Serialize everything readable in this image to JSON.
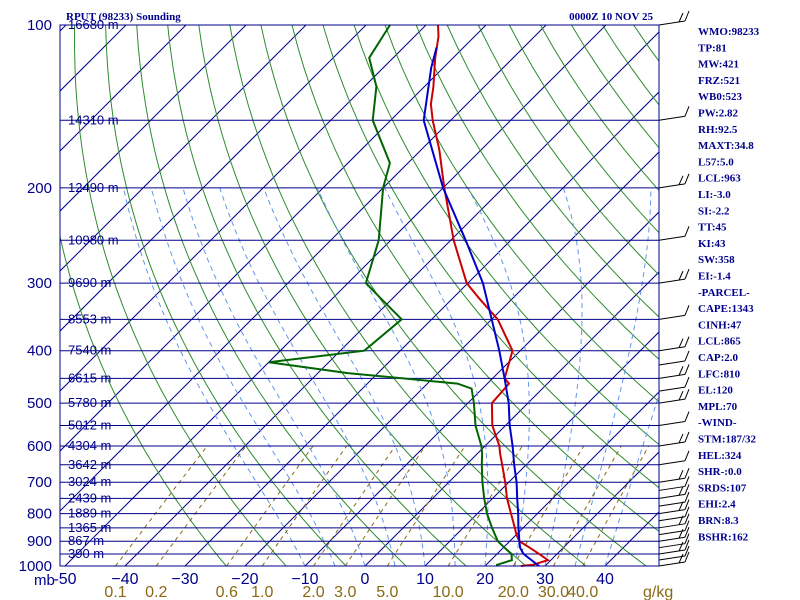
{
  "chart_data": {
    "type": "skew-t sounding",
    "title_left": "RPUT (98233) Sounding",
    "title_right": "0000Z 10 NOV 25",
    "pressure_axis": {
      "unit_label": "mb",
      "ticks": [
        100,
        200,
        300,
        400,
        500,
        600,
        700,
        800,
        900,
        1000
      ],
      "range": [
        100,
        1000
      ],
      "scale": "log"
    },
    "temperature_axis": {
      "ticks": [
        -50,
        -40,
        -30,
        -20,
        -10,
        0,
        10,
        20,
        30,
        40
      ],
      "tick_labels": [
        "-50",
        "−40",
        "−30",
        "−20",
        "−10",
        "0",
        "10",
        "20",
        "30",
        "40"
      ],
      "range_at_1000mb": [
        -50,
        50
      ],
      "skew": "45 degrees"
    },
    "mixing_ratio_axis": {
      "ticks": [
        0.1,
        0.2,
        0.6,
        1.0,
        2.0,
        3.0,
        5.0,
        10.0,
        20.0,
        30.0,
        40.0
      ],
      "tick_labels": [
        "0.1",
        "0.2",
        "0.6",
        "1.0",
        "2.0",
        "3.0",
        "5.0",
        "10.0",
        "20.0",
        "30.0",
        "40.0"
      ],
      "unit": "g/kg"
    },
    "height_labels": [
      {
        "p": 100,
        "text": "16680 m"
      },
      {
        "p": 150,
        "text": "14310 m"
      },
      {
        "p": 200,
        "text": "12490 m"
      },
      {
        "p": 250,
        "text": "10980 m"
      },
      {
        "p": 300,
        "text": "9690 m"
      },
      {
        "p": 350,
        "text": "8553 m"
      },
      {
        "p": 400,
        "text": "7540 m"
      },
      {
        "p": 450,
        "text": "6615 m"
      },
      {
        "p": 500,
        "text": "5780 m"
      },
      {
        "p": 550,
        "text": "5012 m"
      },
      {
        "p": 600,
        "text": "4304 m"
      },
      {
        "p": 650,
        "text": "3642 m"
      },
      {
        "p": 700,
        "text": "3024 m"
      },
      {
        "p": 750,
        "text": "2439 m"
      },
      {
        "p": 800,
        "text": "1889 m"
      },
      {
        "p": 850,
        "text": "1365 m"
      },
      {
        "p": 900,
        "text": "867 m"
      },
      {
        "p": 950,
        "text": "390 m"
      }
    ],
    "series": [
      {
        "name": "temperature",
        "color": "#cc0000",
        "points": [
          [
            1000,
            26.0
          ],
          [
            995,
            27.8
          ],
          [
            975,
            29.5
          ],
          [
            950,
            27.0
          ],
          [
            925,
            24.4
          ],
          [
            900,
            21.6
          ],
          [
            875,
            20.0
          ],
          [
            850,
            18.6
          ],
          [
            800,
            15.6
          ],
          [
            750,
            12.4
          ],
          [
            700,
            9.4
          ],
          [
            650,
            6.0
          ],
          [
            620,
            3.8
          ],
          [
            600,
            2.4
          ],
          [
            550,
            -2.2
          ],
          [
            500,
            -6.0
          ],
          [
            460,
            -6.4
          ],
          [
            450,
            -8.0
          ],
          [
            400,
            -11.3
          ],
          [
            350,
            -19.0
          ],
          [
            320,
            -25.6
          ],
          [
            300,
            -30.2
          ],
          [
            250,
            -39.5
          ],
          [
            200,
            -49.8
          ],
          [
            170,
            -57.0
          ],
          [
            150,
            -63.0
          ],
          [
            140,
            -66.0
          ],
          [
            130,
            -68.5
          ],
          [
            115,
            -73.0
          ],
          [
            105,
            -76.0
          ],
          [
            100,
            -78.0
          ]
        ]
      },
      {
        "name": "dewpoint",
        "color": "#006400",
        "points": [
          [
            1000,
            22.0
          ],
          [
            995,
            21.8
          ],
          [
            975,
            23.5
          ],
          [
            950,
            22.4
          ],
          [
            925,
            20.2
          ],
          [
            900,
            18.0
          ],
          [
            850,
            14.8
          ],
          [
            800,
            11.6
          ],
          [
            750,
            8.6
          ],
          [
            700,
            5.6
          ],
          [
            650,
            2.6
          ],
          [
            620,
            0.8
          ],
          [
            600,
            -0.6
          ],
          [
            550,
            -5.0
          ],
          [
            500,
            -9.0
          ],
          [
            470,
            -11.8
          ],
          [
            460,
            -15.0
          ],
          [
            440,
            -35.0
          ],
          [
            420,
            -50.0
          ],
          [
            400,
            -36.0
          ],
          [
            350,
            -35.0
          ],
          [
            320,
            -42.0
          ],
          [
            300,
            -47.0
          ],
          [
            250,
            -52.0
          ],
          [
            200,
            -60.0
          ],
          [
            180,
            -63.0
          ],
          [
            150,
            -73.0
          ],
          [
            130,
            -78.0
          ],
          [
            115,
            -84.0
          ],
          [
            100,
            -86.0
          ]
        ]
      },
      {
        "name": "parcel",
        "color": "#0000cd",
        "points": [
          [
            1000,
            29.0
          ],
          [
            950,
            24.4
          ],
          [
            925,
            22.8
          ],
          [
            900,
            21.6
          ],
          [
            850,
            19.2
          ],
          [
            800,
            16.8
          ],
          [
            750,
            14.1
          ],
          [
            700,
            11.3
          ],
          [
            650,
            8.0
          ],
          [
            600,
            4.6
          ],
          [
            550,
            0.7
          ],
          [
            500,
            -3.2
          ],
          [
            450,
            -8.0
          ],
          [
            400,
            -13.5
          ],
          [
            350,
            -20.0
          ],
          [
            300,
            -27.5
          ],
          [
            250,
            -37.5
          ],
          [
            200,
            -50.0
          ],
          [
            150,
            -64.5
          ],
          [
            120,
            -72.0
          ],
          [
            110,
            -74.5
          ]
        ]
      }
    ],
    "wind_barbs_pressures": [
      1000,
      975,
      950,
      925,
      900,
      875,
      850,
      825,
      800,
      775,
      750,
      725,
      700,
      650,
      600,
      550,
      500,
      475,
      450,
      425,
      400,
      350,
      300,
      250,
      200,
      150,
      100
    ],
    "indices": [
      "WMO:98233",
      "TP:81",
      "MW:421",
      "FRZ:521",
      "WB0:523",
      "PW:2.82",
      "RH:92.5",
      "MAXT:34.8",
      "L57:5.0",
      "LCL:963",
      "LI:-3.0",
      "SI:-2.2",
      "TT:45",
      "KI:43",
      "SW:358",
      "EI:-1.4",
      "-PARCEL-",
      "CAPE:1343",
      "CINH:47",
      "LCL:865",
      "CAP:2.0",
      "LFC:810",
      "EL:120",
      "MPL:70",
      "-WIND-",
      "STM:187/32",
      "HEL:324",
      "SHR-:0.0",
      "SRDS:107",
      "EHI:2.4",
      "BRN:8.3",
      "BSHR:162"
    ],
    "colors": {
      "frame": "#00008b",
      "isotherm": "#00008b",
      "dry_adiabat": "#2e8b2e",
      "moist_adiabat": "#6495ed",
      "mixing_ratio": "#8b6914"
    }
  }
}
